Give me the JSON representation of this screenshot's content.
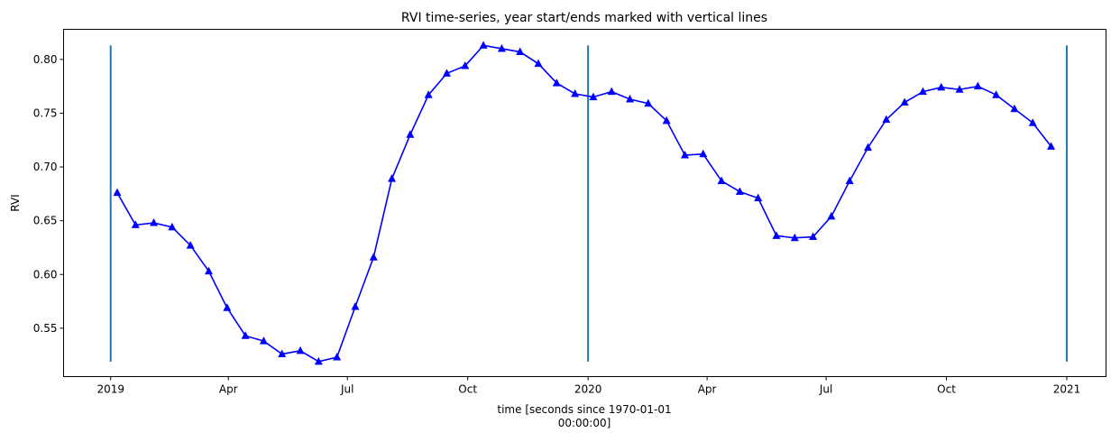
{
  "chart_data": {
    "type": "line",
    "title": "RVI time-series, year start/ends marked with vertical lines",
    "xlabel_lines": [
      "time [seconds since 1970-01-01",
      "00:00:00]"
    ],
    "ylabel": "RVI",
    "xlim": [
      "2018-11-26",
      "2021-01-31"
    ],
    "ylim": [
      0.505,
      0.828
    ],
    "grid": false,
    "yticks": [
      0.55,
      0.6,
      0.65,
      0.7,
      0.75,
      0.8
    ],
    "ytick_labels": [
      "0.55",
      "0.60",
      "0.65",
      "0.70",
      "0.75",
      "0.80"
    ],
    "xticks": [
      "2019-01-01",
      "2019-04-01",
      "2019-07-01",
      "2019-10-01",
      "2020-01-01",
      "2020-04-01",
      "2020-07-01",
      "2020-10-01",
      "2021-01-01"
    ],
    "xtick_labels": [
      "2019",
      "Apr",
      "Jul",
      "Oct",
      "2020",
      "Apr",
      "Jul",
      "Oct",
      "2021"
    ],
    "vlines": {
      "x": [
        "2019-01-01",
        "2020-01-01",
        "2021-01-01"
      ],
      "ymin": 0.519,
      "ymax": 0.813,
      "color": "#1f77b4"
    },
    "series": [
      {
        "name": "RVI",
        "color": "#0000ff",
        "marker": "triangle-up",
        "x": [
          "2019-01-06",
          "2019-01-20",
          "2019-02-03",
          "2019-02-17",
          "2019-03-03",
          "2019-03-17",
          "2019-03-31",
          "2019-04-14",
          "2019-04-28",
          "2019-05-12",
          "2019-05-26",
          "2019-06-09",
          "2019-06-23",
          "2019-07-07",
          "2019-07-21",
          "2019-08-04",
          "2019-08-18",
          "2019-09-01",
          "2019-09-15",
          "2019-09-29",
          "2019-10-13",
          "2019-10-27",
          "2019-11-10",
          "2019-11-24",
          "2019-12-08",
          "2019-12-22",
          "2020-01-05",
          "2020-01-19",
          "2020-02-02",
          "2020-02-16",
          "2020-03-01",
          "2020-03-15",
          "2020-03-29",
          "2020-04-12",
          "2020-04-26",
          "2020-05-10",
          "2020-05-24",
          "2020-06-07",
          "2020-06-21",
          "2020-07-05",
          "2020-07-19",
          "2020-08-02",
          "2020-08-16",
          "2020-08-30",
          "2020-09-13",
          "2020-09-27",
          "2020-10-11",
          "2020-10-25",
          "2020-11-08",
          "2020-11-22",
          "2020-12-06",
          "2020-12-20"
        ],
        "values": [
          0.676,
          0.646,
          0.648,
          0.644,
          0.627,
          0.603,
          0.569,
          0.543,
          0.538,
          0.526,
          0.529,
          0.519,
          0.523,
          0.57,
          0.616,
          0.689,
          0.73,
          0.767,
          0.787,
          0.794,
          0.813,
          0.81,
          0.807,
          0.796,
          0.778,
          0.768,
          0.765,
          0.77,
          0.763,
          0.759,
          0.743,
          0.711,
          0.712,
          0.687,
          0.677,
          0.671,
          0.636,
          0.634,
          0.635,
          0.654,
          0.687,
          0.718,
          0.744,
          0.76,
          0.77,
          0.774,
          0.772,
          0.775,
          0.767,
          0.754,
          0.741,
          0.719
        ]
      }
    ]
  }
}
